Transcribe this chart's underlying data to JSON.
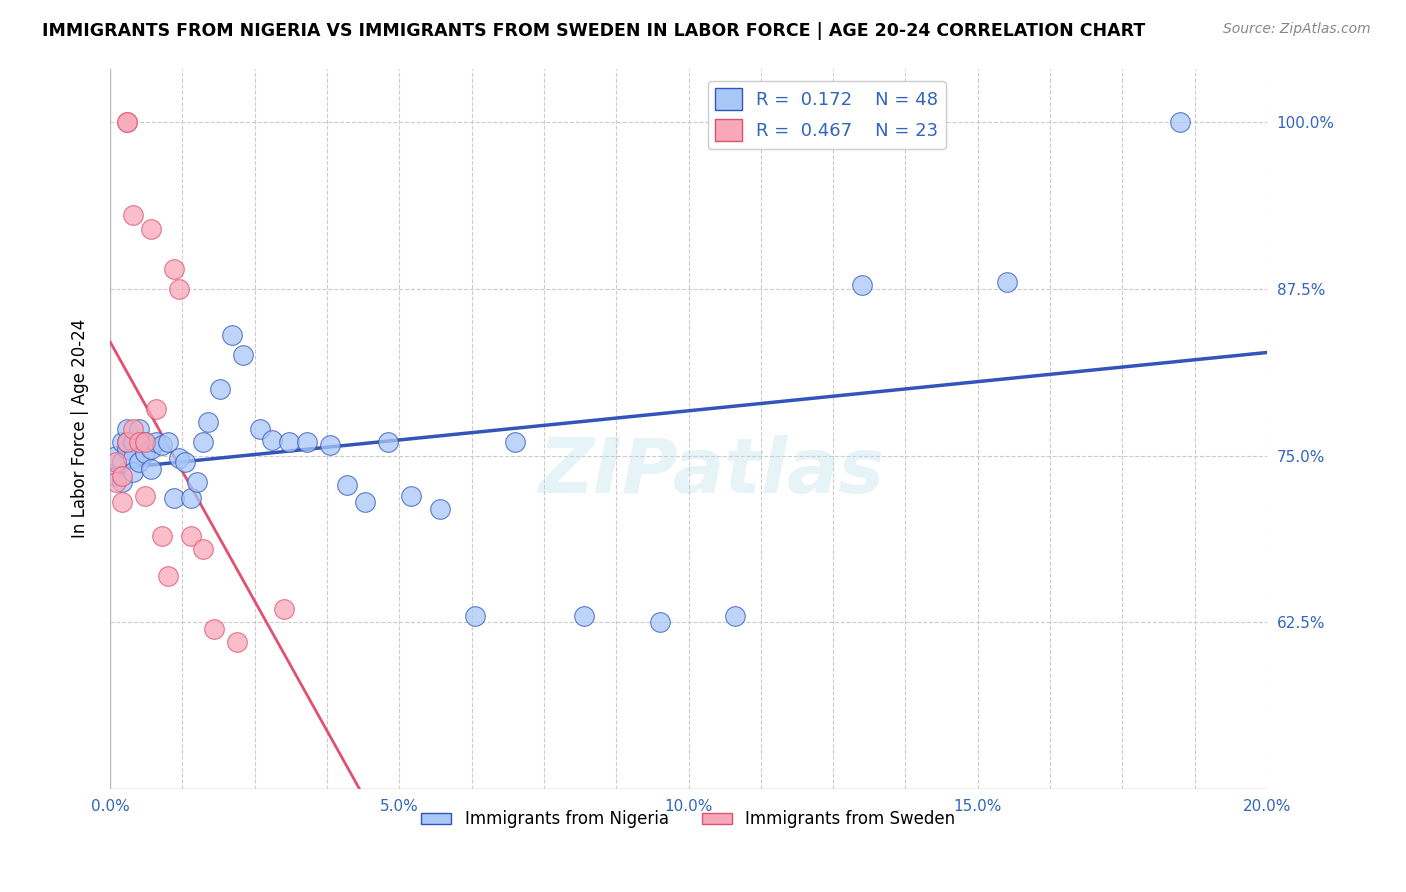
{
  "title": "IMMIGRANTS FROM NIGERIA VS IMMIGRANTS FROM SWEDEN IN LABOR FORCE | AGE 20-24 CORRELATION CHART",
  "source": "Source: ZipAtlas.com",
  "ylabel": "In Labor Force | Age 20-24",
  "xlim": [
    0.0,
    0.2
  ],
  "ylim": [
    0.5,
    1.04
  ],
  "right_yticks": [
    1.0,
    0.875,
    0.75,
    0.625
  ],
  "right_ytick_labels": [
    "100.0%",
    "87.5%",
    "75.0%",
    "62.5%"
  ],
  "nigeria_R": 0.172,
  "nigeria_N": 48,
  "sweden_R": 0.467,
  "sweden_N": 23,
  "nigeria_color": "#A8C8F8",
  "sweden_color": "#F8A8B8",
  "nigeria_line_color": "#3355BB",
  "sweden_line_color": "#E05070",
  "legend_nigeria_label": "Immigrants from Nigeria",
  "legend_sweden_label": "Immigrants from Sweden",
  "nigeria_x": [
    0.001,
    0.001,
    0.002,
    0.002,
    0.002,
    0.003,
    0.003,
    0.003,
    0.004,
    0.004,
    0.004,
    0.005,
    0.005,
    0.006,
    0.006,
    0.007,
    0.007,
    0.008,
    0.009,
    0.01,
    0.011,
    0.012,
    0.013,
    0.014,
    0.015,
    0.016,
    0.017,
    0.019,
    0.021,
    0.023,
    0.026,
    0.028,
    0.031,
    0.034,
    0.038,
    0.041,
    0.044,
    0.048,
    0.052,
    0.057,
    0.063,
    0.07,
    0.082,
    0.095,
    0.108,
    0.13,
    0.155,
    0.185
  ],
  "nigeria_y": [
    0.75,
    0.735,
    0.76,
    0.745,
    0.73,
    0.77,
    0.755,
    0.76,
    0.76,
    0.748,
    0.738,
    0.77,
    0.745,
    0.76,
    0.752,
    0.755,
    0.74,
    0.76,
    0.758,
    0.76,
    0.718,
    0.748,
    0.745,
    0.718,
    0.73,
    0.76,
    0.775,
    0.8,
    0.84,
    0.825,
    0.77,
    0.762,
    0.76,
    0.76,
    0.758,
    0.728,
    0.715,
    0.76,
    0.72,
    0.71,
    0.63,
    0.76,
    0.63,
    0.625,
    0.63,
    0.878,
    0.88,
    1.0
  ],
  "sweden_x": [
    0.001,
    0.001,
    0.002,
    0.002,
    0.003,
    0.003,
    0.003,
    0.004,
    0.004,
    0.005,
    0.006,
    0.006,
    0.007,
    0.008,
    0.009,
    0.01,
    0.011,
    0.012,
    0.014,
    0.016,
    0.018,
    0.022,
    0.03
  ],
  "sweden_y": [
    0.745,
    0.73,
    0.735,
    0.715,
    1.0,
    1.0,
    0.76,
    0.93,
    0.77,
    0.76,
    0.76,
    0.72,
    0.92,
    0.785,
    0.69,
    0.66,
    0.89,
    0.875,
    0.69,
    0.68,
    0.62,
    0.61,
    0.635
  ],
  "watermark": "ZIPatlas",
  "background_color": "#FFFFFF",
  "grid_color": "#CCCCCC"
}
